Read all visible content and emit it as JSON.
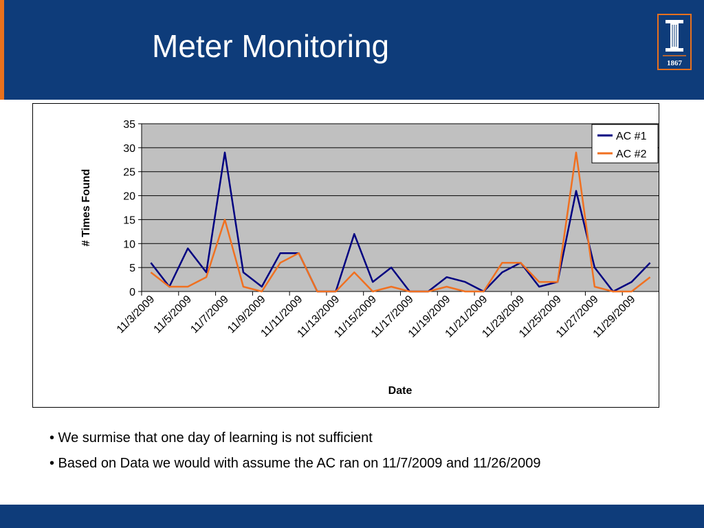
{
  "slide": {
    "title": "Meter Monitoring",
    "logo_text": "1867",
    "colors": {
      "header": "#0e3c7a",
      "accent": "#e8711d",
      "footer": "#0e3c7a"
    }
  },
  "bullets": [
    "• We surmise that one day of learning is not sufficient",
    "• Based on Data we would with assume the AC ran on 11/7/2009 and 11/26/2009"
  ],
  "chart_data": {
    "type": "line",
    "xlabel": "Date",
    "ylabel": "# Times Found",
    "ylim": [
      0,
      35
    ],
    "yticks": [
      0,
      5,
      10,
      15,
      20,
      25,
      30,
      35
    ],
    "grid": true,
    "legend_position": "top-right",
    "tick_labels": [
      "11/3/2009",
      "11/5/2009",
      "11/7/2009",
      "11/9/2009",
      "11/11/2009",
      "11/13/2009",
      "11/15/2009",
      "11/17/2009",
      "11/19/2009",
      "11/21/2009",
      "11/23/2009",
      "11/25/2009",
      "11/27/2009",
      "11/29/2009"
    ],
    "x": [
      "11/3/2009",
      "11/4/2009",
      "11/5/2009",
      "11/6/2009",
      "11/7/2009",
      "11/8/2009",
      "11/9/2009",
      "11/10/2009",
      "11/11/2009",
      "11/12/2009",
      "11/13/2009",
      "11/14/2009",
      "11/15/2009",
      "11/16/2009",
      "11/17/2009",
      "11/18/2009",
      "11/19/2009",
      "11/20/2009",
      "11/21/2009",
      "11/22/2009",
      "11/23/2009",
      "11/24/2009",
      "11/25/2009",
      "11/26/2009",
      "11/27/2009",
      "11/28/2009",
      "11/29/2009",
      "11/30/2009"
    ],
    "series": [
      {
        "name": "AC #1",
        "color": "#000080",
        "values": [
          6,
          1,
          9,
          4,
          29,
          4,
          1,
          8,
          8,
          0,
          0,
          12,
          2,
          5,
          0,
          0,
          3,
          2,
          0,
          4,
          6,
          1,
          2,
          21,
          5,
          0,
          2,
          6
        ]
      },
      {
        "name": "AC #2",
        "color": "#f07020",
        "values": [
          4,
          1,
          1,
          3,
          15,
          1,
          0,
          6,
          8,
          0,
          0,
          4,
          0,
          1,
          0,
          0,
          1,
          0,
          0,
          6,
          6,
          2,
          2,
          29,
          1,
          0,
          0,
          3
        ]
      }
    ]
  }
}
